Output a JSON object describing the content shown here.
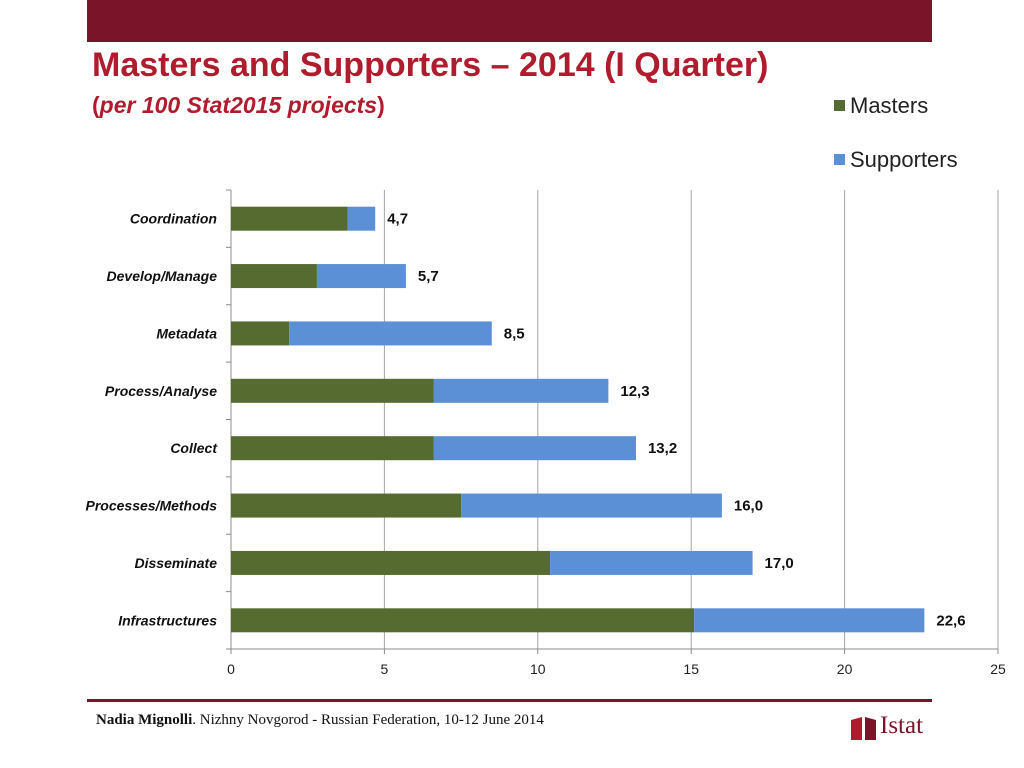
{
  "header": {
    "title": "Masters and Supporters – 2014 (I Quarter)",
    "subtitle_open": "(",
    "subtitle_italic": "per 100 Stat2015 projects",
    "subtitle_close": ")"
  },
  "colors": {
    "brand": "#7a1428",
    "title": "#b01c2e",
    "masters": "#556b2f",
    "supporters": "#5b8fd6"
  },
  "chart_data": {
    "type": "bar",
    "orientation": "horizontal",
    "stacked": true,
    "categories": [
      "Coordination",
      "Develop/Manage",
      "Metadata",
      "Process/Analyse",
      "Collect",
      "Processes/Methods",
      "Disseminate",
      "Infrastructures"
    ],
    "series": [
      {
        "name": "Masters",
        "color": "#556b2f",
        "values": [
          3.8,
          2.8,
          1.9,
          6.6,
          6.6,
          7.5,
          10.4,
          15.1
        ]
      },
      {
        "name": "Supporters",
        "color": "#5b8fd6",
        "values": [
          0.9,
          2.9,
          6.6,
          5.7,
          6.6,
          8.5,
          6.6,
          7.5
        ]
      }
    ],
    "total_labels": [
      "4,7",
      "5,7",
      "8,5",
      "12,3",
      "13,2",
      "16,0",
      "17,0",
      "22,6"
    ],
    "xlim": [
      0,
      25
    ],
    "xticks": [
      0,
      5,
      10,
      15,
      20,
      25
    ],
    "grid": "vertical",
    "legend_position": "top-right",
    "xlabel": "",
    "ylabel": ""
  },
  "footer": {
    "author": "Nadia Mignolli",
    "text": ". Nizhny Novgorod - Russian Federation, 10-12 June 2014"
  },
  "logo": {
    "text": "Istat"
  }
}
